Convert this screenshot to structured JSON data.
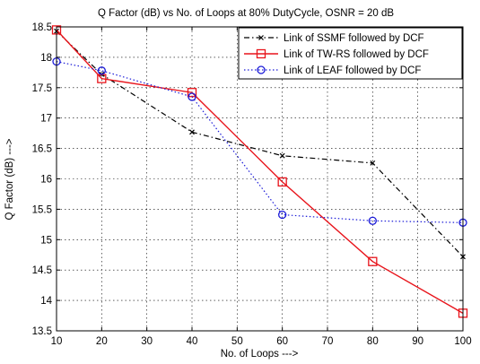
{
  "chart_data": {
    "type": "line",
    "title": "Q Factor (dB) vs No. of Loops at 80% DutyCycle, OSNR = 20 dB",
    "xlabel": "No. of Loops --->",
    "ylabel": "Q Factor (dB) --->",
    "xlim": [
      10,
      100
    ],
    "ylim": [
      13.5,
      18.5
    ],
    "xticks": [
      "10",
      "20",
      "30",
      "40",
      "50",
      "60",
      "70",
      "80",
      "90",
      "100"
    ],
    "yticks": [
      "13.5",
      "14",
      "14.5",
      "15",
      "15.5",
      "16",
      "16.5",
      "17",
      "17.5",
      "18",
      "18.5"
    ],
    "grid": true,
    "legend_position": "top-right",
    "x": [
      10,
      20,
      40,
      60,
      80,
      100
    ],
    "series": [
      {
        "name": "Link of SSMF followed by DCF",
        "values": [
          18.43,
          17.72,
          16.77,
          16.38,
          16.26,
          14.72
        ],
        "color": "#000000",
        "line": "dash-dot",
        "marker": "x"
      },
      {
        "name": "Link of TW-RS followed by DCF",
        "values": [
          18.45,
          17.65,
          17.42,
          15.95,
          14.64,
          13.79
        ],
        "color": "#e8141b",
        "line": "solid",
        "marker": "square"
      },
      {
        "name": "Link of LEAF followed by DCF",
        "values": [
          17.93,
          17.78,
          17.35,
          15.41,
          15.31,
          15.28
        ],
        "color": "#1b1bd8",
        "line": "dotted",
        "marker": "circle"
      }
    ]
  }
}
